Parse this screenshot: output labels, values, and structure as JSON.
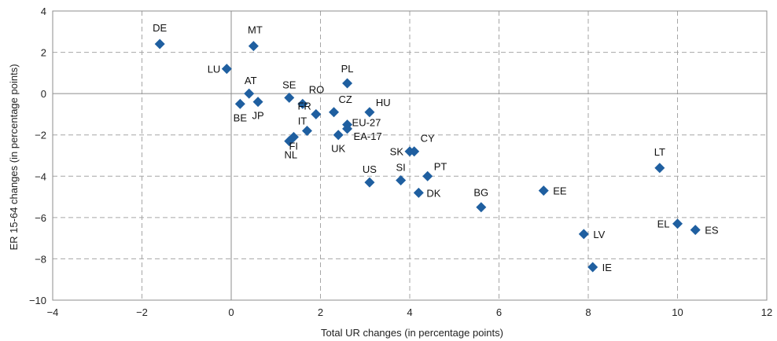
{
  "chart_data": {
    "type": "scatter",
    "xlabel": "Total UR changes (in percentage points)",
    "ylabel": "ER 15-64 changes (in percentage points)",
    "xlim": [
      -4,
      12
    ],
    "ylim": [
      -10,
      4
    ],
    "xticks": [
      -4,
      -2,
      0,
      2,
      4,
      6,
      8,
      10,
      12
    ],
    "yticks": [
      -10,
      -8,
      -6,
      -4,
      -2,
      0,
      2,
      4
    ],
    "xtick_labels": [
      "−4",
      "−2",
      "0",
      "2",
      "4",
      "6",
      "8",
      "10",
      "12"
    ],
    "ytick_labels": [
      "−10",
      "−8",
      "−6",
      "−4",
      "−2",
      "0",
      "2",
      "4"
    ],
    "grid": true,
    "marker_color": "#1f5fa0",
    "points": [
      {
        "label": "DE",
        "x": -1.6,
        "y": 2.4
      },
      {
        "label": "MT",
        "x": 0.5,
        "y": 2.3
      },
      {
        "label": "LU",
        "x": -0.1,
        "y": 1.2
      },
      {
        "label": "AT",
        "x": 0.4,
        "y": 0.0
      },
      {
        "label": "BE",
        "x": 0.2,
        "y": -0.5
      },
      {
        "label": "JP",
        "x": 0.6,
        "y": -0.4
      },
      {
        "label": "SE",
        "x": 1.3,
        "y": -0.2
      },
      {
        "label": "RO",
        "x": 1.6,
        "y": -0.5
      },
      {
        "label": "FR",
        "x": 1.9,
        "y": -1.0
      },
      {
        "label": "IT",
        "x": 1.7,
        "y": -1.8
      },
      {
        "label": "NL",
        "x": 1.3,
        "y": -2.3
      },
      {
        "label": "FI",
        "x": 1.4,
        "y": -2.1
      },
      {
        "label": "CZ",
        "x": 2.3,
        "y": -0.9
      },
      {
        "label": "PL",
        "x": 2.6,
        "y": 0.5
      },
      {
        "label": "HU",
        "x": 3.1,
        "y": -0.9
      },
      {
        "label": "EU-27",
        "x": 2.6,
        "y": -1.5
      },
      {
        "label": "EA-17",
        "x": 2.6,
        "y": -1.7
      },
      {
        "label": "UK",
        "x": 2.4,
        "y": -2.0
      },
      {
        "label": "SK",
        "x": 4.0,
        "y": -2.8
      },
      {
        "label": "CY",
        "x": 4.1,
        "y": -2.8
      },
      {
        "label": "PT",
        "x": 4.4,
        "y": -4.0
      },
      {
        "label": "SI",
        "x": 3.8,
        "y": -4.2
      },
      {
        "label": "US",
        "x": 3.1,
        "y": -4.3
      },
      {
        "label": "DK",
        "x": 4.2,
        "y": -4.8
      },
      {
        "label": "BG",
        "x": 5.6,
        "y": -5.5
      },
      {
        "label": "EE",
        "x": 7.0,
        "y": -4.7
      },
      {
        "label": "LT",
        "x": 9.6,
        "y": -3.6
      },
      {
        "label": "LV",
        "x": 7.9,
        "y": -6.8
      },
      {
        "label": "IE",
        "x": 8.1,
        "y": -8.4
      },
      {
        "label": "EL",
        "x": 10.0,
        "y": -6.3
      },
      {
        "label": "ES",
        "x": 10.4,
        "y": -6.6
      }
    ]
  }
}
